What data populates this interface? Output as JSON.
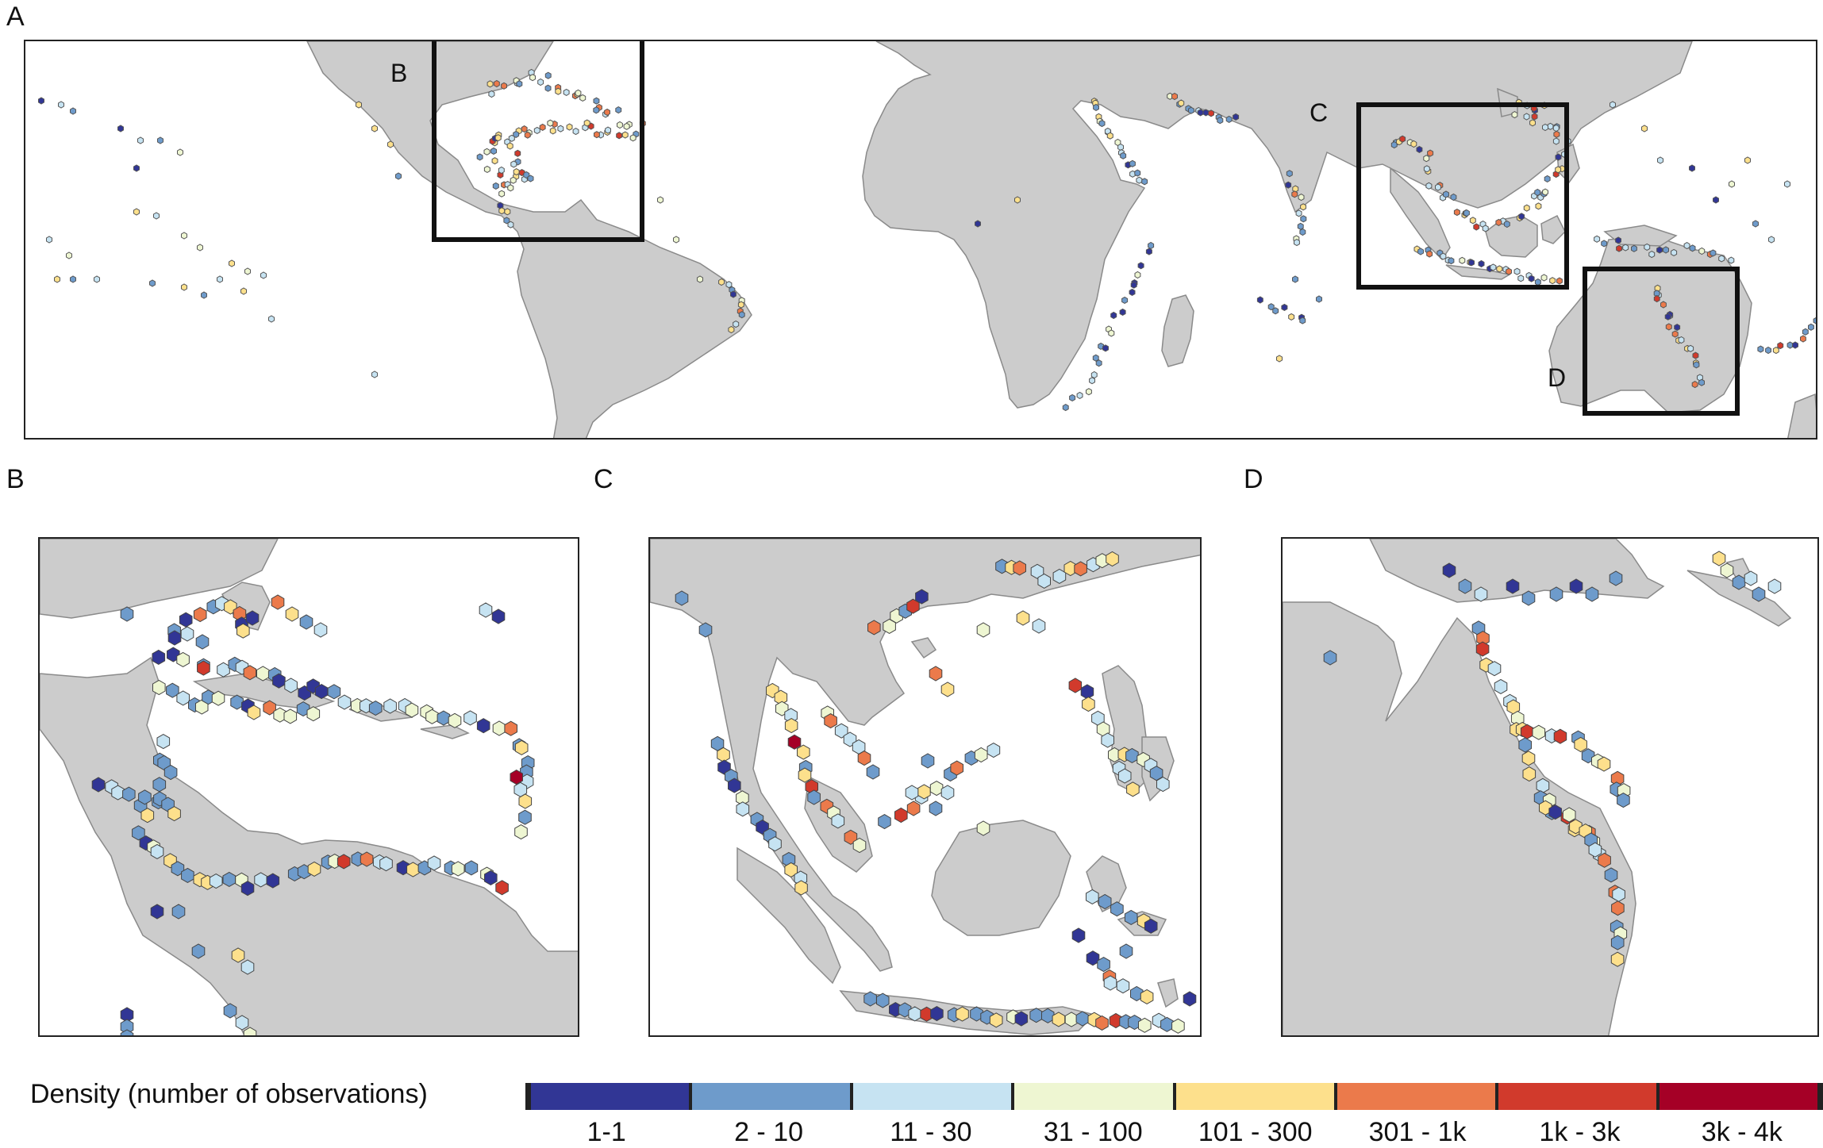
{
  "figure": {
    "panel_labels": {
      "a": "A",
      "b": "B",
      "c": "C",
      "d": "D"
    },
    "inset_labels": {
      "b": "B",
      "c": "C",
      "d": "D"
    }
  },
  "colors": {
    "land": "#cccccc",
    "land_edge": "#8a8a8a",
    "sea": "#ffffff",
    "hex_edge": "#444444"
  },
  "legend": {
    "title": "Density (number of observations)",
    "classes": [
      {
        "label": "1-1",
        "color": "#313695"
      },
      {
        "label": "2 - 10",
        "color": "#6e9bcb"
      },
      {
        "label": "11 - 30",
        "color": "#c6e3f2"
      },
      {
        "label": "31 - 100",
        "color": "#eef6d2"
      },
      {
        "label": "101 - 300",
        "color": "#fde08c"
      },
      {
        "label": "301 - 1k",
        "color": "#eb7a4b"
      },
      {
        "label": "1k - 3k",
        "color": "#d13a2c"
      },
      {
        "label": "3k - 4k",
        "color": "#a50026"
      }
    ]
  }
}
